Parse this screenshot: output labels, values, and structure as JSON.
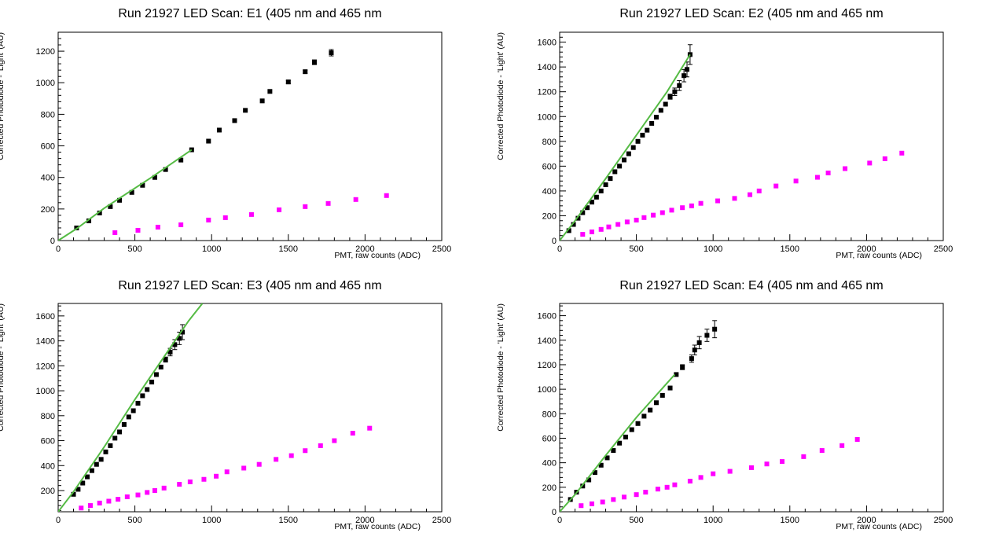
{
  "chart_data": [
    {
      "type": "scatter",
      "title": "Run 21927    LED Scan: E1 (405 nm and 465 nm",
      "xlabel": "PMT, raw counts (ADC)",
      "ylabel": "Corrected Photodiode - 'Light' (AU)",
      "xlim": [
        0,
        2500
      ],
      "ylim": [
        0,
        1320
      ],
      "xticks": [
        0,
        500,
        1000,
        1500,
        2000,
        2500
      ],
      "yticks": [
        0,
        200,
        400,
        600,
        800,
        1000,
        1200
      ],
      "series": [
        {
          "marker": "black-square",
          "color": "#000000",
          "x": [
            120,
            200,
            270,
            340,
            400,
            480,
            550,
            630,
            700,
            800,
            870,
            980,
            1050,
            1150,
            1220,
            1330,
            1380,
            1500,
            1610,
            1670,
            1780
          ],
          "y": [
            80,
            125,
            175,
            215,
            255,
            305,
            350,
            400,
            450,
            510,
            575,
            630,
            700,
            760,
            825,
            885,
            945,
            1005,
            1070,
            1130,
            1190
          ],
          "yerr": [
            0,
            0,
            0,
            0,
            0,
            0,
            0,
            0,
            0,
            0,
            0,
            0,
            0,
            0,
            0,
            0,
            0,
            10,
            10,
            15,
            20
          ]
        },
        {
          "marker": "magenta-square",
          "color": "#ff00ff",
          "x": [
            370,
            520,
            650,
            800,
            980,
            1090,
            1260,
            1440,
            1610,
            1760,
            1940,
            2140
          ],
          "y": [
            50,
            65,
            85,
            100,
            130,
            145,
            165,
            195,
            215,
            235,
            260,
            285
          ]
        },
        {
          "line": "fit",
          "color": "#55bb44",
          "x": [
            0,
            40,
            120,
            300,
            600,
            870
          ],
          "y": [
            0,
            25,
            75,
            205,
            395,
            575
          ]
        }
      ]
    },
    {
      "type": "scatter",
      "title": "Run 21927    LED Scan: E2 (405 nm and 465 nm",
      "xlabel": "PMT, raw counts (ADC)",
      "ylabel": "Corrected Photodiode - 'Light' (AU)",
      "xlim": [
        0,
        2500
      ],
      "ylim": [
        0,
        1680
      ],
      "xticks": [
        0,
        500,
        1000,
        1500,
        2000,
        2500
      ],
      "yticks": [
        0,
        200,
        400,
        600,
        800,
        1000,
        1200,
        1400,
        1600
      ],
      "series": [
        {
          "marker": "black-square",
          "color": "#000000",
          "x": [
            60,
            90,
            120,
            150,
            180,
            210,
            240,
            270,
            300,
            330,
            360,
            390,
            420,
            450,
            480,
            510,
            540,
            570,
            600,
            630,
            660,
            690,
            720,
            750,
            780,
            810,
            830,
            850
          ],
          "y": [
            80,
            130,
            180,
            225,
            265,
            310,
            350,
            400,
            450,
            500,
            555,
            600,
            650,
            700,
            750,
            800,
            850,
            890,
            945,
            995,
            1050,
            1100,
            1160,
            1200,
            1250,
            1330,
            1380,
            1500
          ],
          "yerr": [
            0,
            0,
            0,
            0,
            0,
            0,
            0,
            0,
            0,
            0,
            0,
            0,
            0,
            0,
            0,
            0,
            0,
            0,
            0,
            0,
            0,
            0,
            20,
            30,
            40,
            50,
            60,
            80
          ]
        },
        {
          "marker": "magenta-square",
          "color": "#ff00ff",
          "x": [
            150,
            210,
            270,
            320,
            380,
            440,
            500,
            550,
            610,
            670,
            730,
            800,
            860,
            920,
            1030,
            1140,
            1240,
            1300,
            1410,
            1540,
            1680,
            1750,
            1860,
            2020,
            2120,
            2230
          ],
          "y": [
            50,
            70,
            90,
            110,
            130,
            150,
            165,
            185,
            205,
            225,
            245,
            265,
            280,
            300,
            320,
            340,
            370,
            400,
            440,
            480,
            510,
            545,
            580,
            625,
            660,
            705
          ]
        },
        {
          "line": "fit",
          "color": "#55bb44",
          "x": [
            0,
            100,
            300,
            500,
            700,
            850
          ],
          "y": [
            0,
            160,
            500,
            850,
            1200,
            1500
          ]
        }
      ]
    },
    {
      "type": "scatter",
      "title": "Run 21927    LED Scan: E3 (405 nm and 465 nm",
      "xlabel": "PMT, raw counts (ADC)",
      "ylabel": "Corrected Photodiode - 'Light' (AU)",
      "xlim": [
        0,
        2500
      ],
      "ylim": [
        30,
        1700
      ],
      "xticks": [
        0,
        500,
        1000,
        1500,
        2000,
        2500
      ],
      "yticks": [
        200,
        400,
        600,
        800,
        1000,
        1200,
        1400,
        1600
      ],
      "series": [
        {
          "marker": "black-square",
          "color": "#000000",
          "x": [
            100,
            130,
            160,
            190,
            220,
            250,
            280,
            310,
            340,
            370,
            400,
            430,
            460,
            490,
            520,
            550,
            580,
            610,
            640,
            670,
            700,
            730,
            760,
            790,
            810
          ],
          "y": [
            170,
            210,
            260,
            310,
            360,
            410,
            450,
            510,
            560,
            620,
            670,
            730,
            790,
            840,
            900,
            960,
            1010,
            1070,
            1130,
            1190,
            1250,
            1310,
            1370,
            1420,
            1470
          ],
          "yerr": [
            0,
            0,
            0,
            0,
            0,
            0,
            0,
            0,
            0,
            0,
            0,
            0,
            0,
            0,
            0,
            0,
            0,
            0,
            0,
            0,
            20,
            30,
            40,
            50,
            60
          ]
        },
        {
          "marker": "magenta-square",
          "color": "#ff00ff",
          "x": [
            150,
            210,
            270,
            330,
            390,
            450,
            520,
            580,
            630,
            690,
            790,
            860,
            950,
            1030,
            1100,
            1210,
            1310,
            1420,
            1520,
            1610,
            1710,
            1800,
            1920,
            2030
          ],
          "y": [
            60,
            80,
            100,
            115,
            130,
            150,
            165,
            185,
            200,
            220,
            250,
            270,
            290,
            315,
            350,
            380,
            410,
            450,
            480,
            520,
            560,
            600,
            660,
            700
          ]
        },
        {
          "line": "fit",
          "color": "#55bb44",
          "x": [
            0,
            100,
            300,
            500,
            700,
            850,
            940
          ],
          "y": [
            30,
            190,
            550,
            930,
            1290,
            1560,
            1700
          ]
        }
      ]
    },
    {
      "type": "scatter",
      "title": "Run 21927    LED Scan: E4 (405 nm and 465 nm",
      "xlabel": "PMT, raw counts (ADC)",
      "ylabel": "Corrected Photodiode - 'Light' (AU)",
      "xlim": [
        0,
        2500
      ],
      "ylim": [
        0,
        1700
      ],
      "xticks": [
        0,
        500,
        1000,
        1500,
        2000,
        2500
      ],
      "yticks": [
        0,
        200,
        400,
        600,
        800,
        1000,
        1200,
        1400,
        1600
      ],
      "series": [
        {
          "marker": "black-square",
          "color": "#000000",
          "x": [
            70,
            110,
            150,
            190,
            230,
            270,
            310,
            350,
            390,
            430,
            470,
            510,
            550,
            590,
            630,
            670,
            720,
            760,
            800,
            860,
            880,
            910,
            960,
            1010
          ],
          "y": [
            100,
            160,
            210,
            260,
            320,
            380,
            440,
            500,
            560,
            610,
            670,
            720,
            780,
            830,
            890,
            950,
            1010,
            1120,
            1180,
            1250,
            1320,
            1380,
            1440,
            1490
          ],
          "yerr": [
            0,
            0,
            0,
            0,
            0,
            0,
            0,
            0,
            0,
            0,
            0,
            0,
            0,
            0,
            0,
            0,
            0,
            0,
            20,
            30,
            40,
            50,
            50,
            70
          ]
        },
        {
          "marker": "magenta-square",
          "color": "#ff00ff",
          "x": [
            140,
            210,
            280,
            350,
            420,
            500,
            560,
            640,
            700,
            750,
            850,
            920,
            1000,
            1110,
            1250,
            1350,
            1450,
            1590,
            1710,
            1840,
            1940
          ],
          "y": [
            50,
            65,
            80,
            100,
            120,
            140,
            160,
            185,
            200,
            220,
            250,
            280,
            310,
            330,
            360,
            390,
            410,
            450,
            500,
            540,
            590
          ]
        },
        {
          "line": "fit",
          "color": "#55bb44",
          "x": [
            0,
            100,
            300,
            500,
            700,
            750
          ],
          "y": [
            0,
            140,
            460,
            770,
            1050,
            1120
          ]
        }
      ]
    }
  ]
}
